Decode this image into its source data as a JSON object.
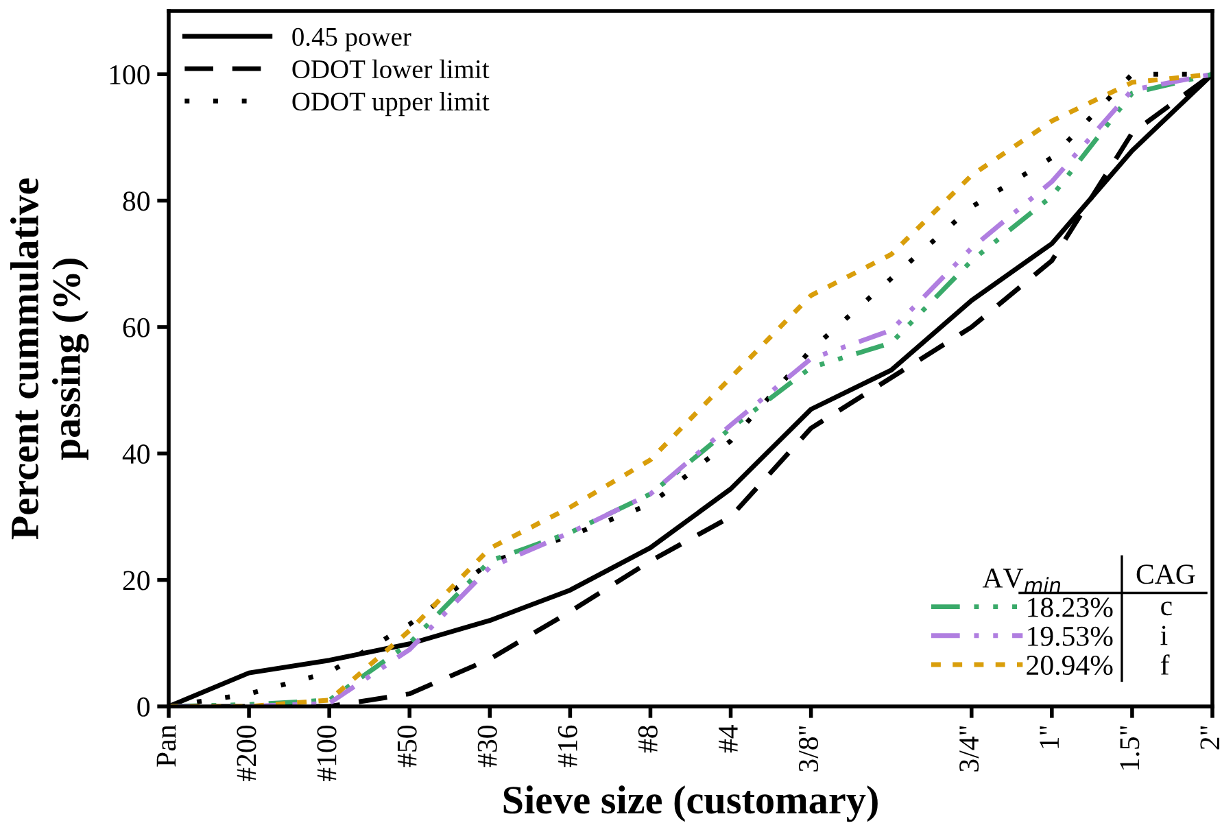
{
  "chart_data": {
    "type": "line",
    "xlabel": "Sieve size (customary)",
    "ylabel": "Percent cummulative\npassing (%)",
    "categories": [
      "Pan",
      "#200",
      "#100",
      "#50",
      "#30",
      "#16",
      "#8",
      "#4",
      "3/8\"",
      null,
      "3/4\"",
      "1\"",
      "1.5\"",
      "2\""
    ],
    "ylim": [
      0,
      110
    ],
    "yticks": [
      0,
      20,
      40,
      60,
      80,
      100
    ],
    "grid": false,
    "legend": "top left",
    "legend_title": "AV$_{min}$",
    "annotations": [
      "CAG",
      "c",
      "i",
      "f"
    ],
    "series": [
      {
        "name": "0.45 power",
        "color": "#000000",
        "line_style": "solid",
        "values": [
          0,
          5.3,
          7.3,
          9.9,
          13.6,
          18.4,
          25.1,
          34.4,
          47.0,
          53.2,
          64.2,
          73.2,
          87.9,
          100
        ]
      },
      {
        "name": "ODOT lower limit",
        "color": "#000000",
        "line_style": "dashed",
        "values": [
          0,
          0,
          0,
          2,
          7.5,
          15,
          23,
          30,
          44,
          null,
          60,
          70.5,
          90.7,
          100
        ]
      },
      {
        "name": "ODOT upper limit",
        "color": "#000000",
        "line_style": "dotted",
        "values": [
          0,
          2,
          5.4,
          13,
          22.8,
          27,
          32,
          42,
          56.4,
          null,
          79,
          86.8,
          100,
          100
        ]
      },
      {
        "name": "18.23%",
        "color": "#3aaa6a",
        "line_style": "dashdotdot",
        "values": [
          0,
          0.3,
          1,
          10,
          23,
          27.5,
          33.6,
          44,
          53.6,
          57.5,
          70.5,
          80.7,
          97,
          100
        ]
      },
      {
        "name": "19.53%",
        "color": "#b07ee0",
        "line_style": "dashdot",
        "values": [
          0,
          0,
          0.5,
          9,
          22,
          27.5,
          33.6,
          44.5,
          55,
          59.5,
          72.5,
          83,
          97.5,
          100
        ]
      },
      {
        "name": "20.94%",
        "color": "#d99e0b",
        "line_style": "shortdash",
        "values": [
          0,
          0,
          1,
          12,
          25,
          31.5,
          39,
          52,
          65,
          71.5,
          84,
          92.6,
          98.7,
          100
        ]
      }
    ]
  }
}
